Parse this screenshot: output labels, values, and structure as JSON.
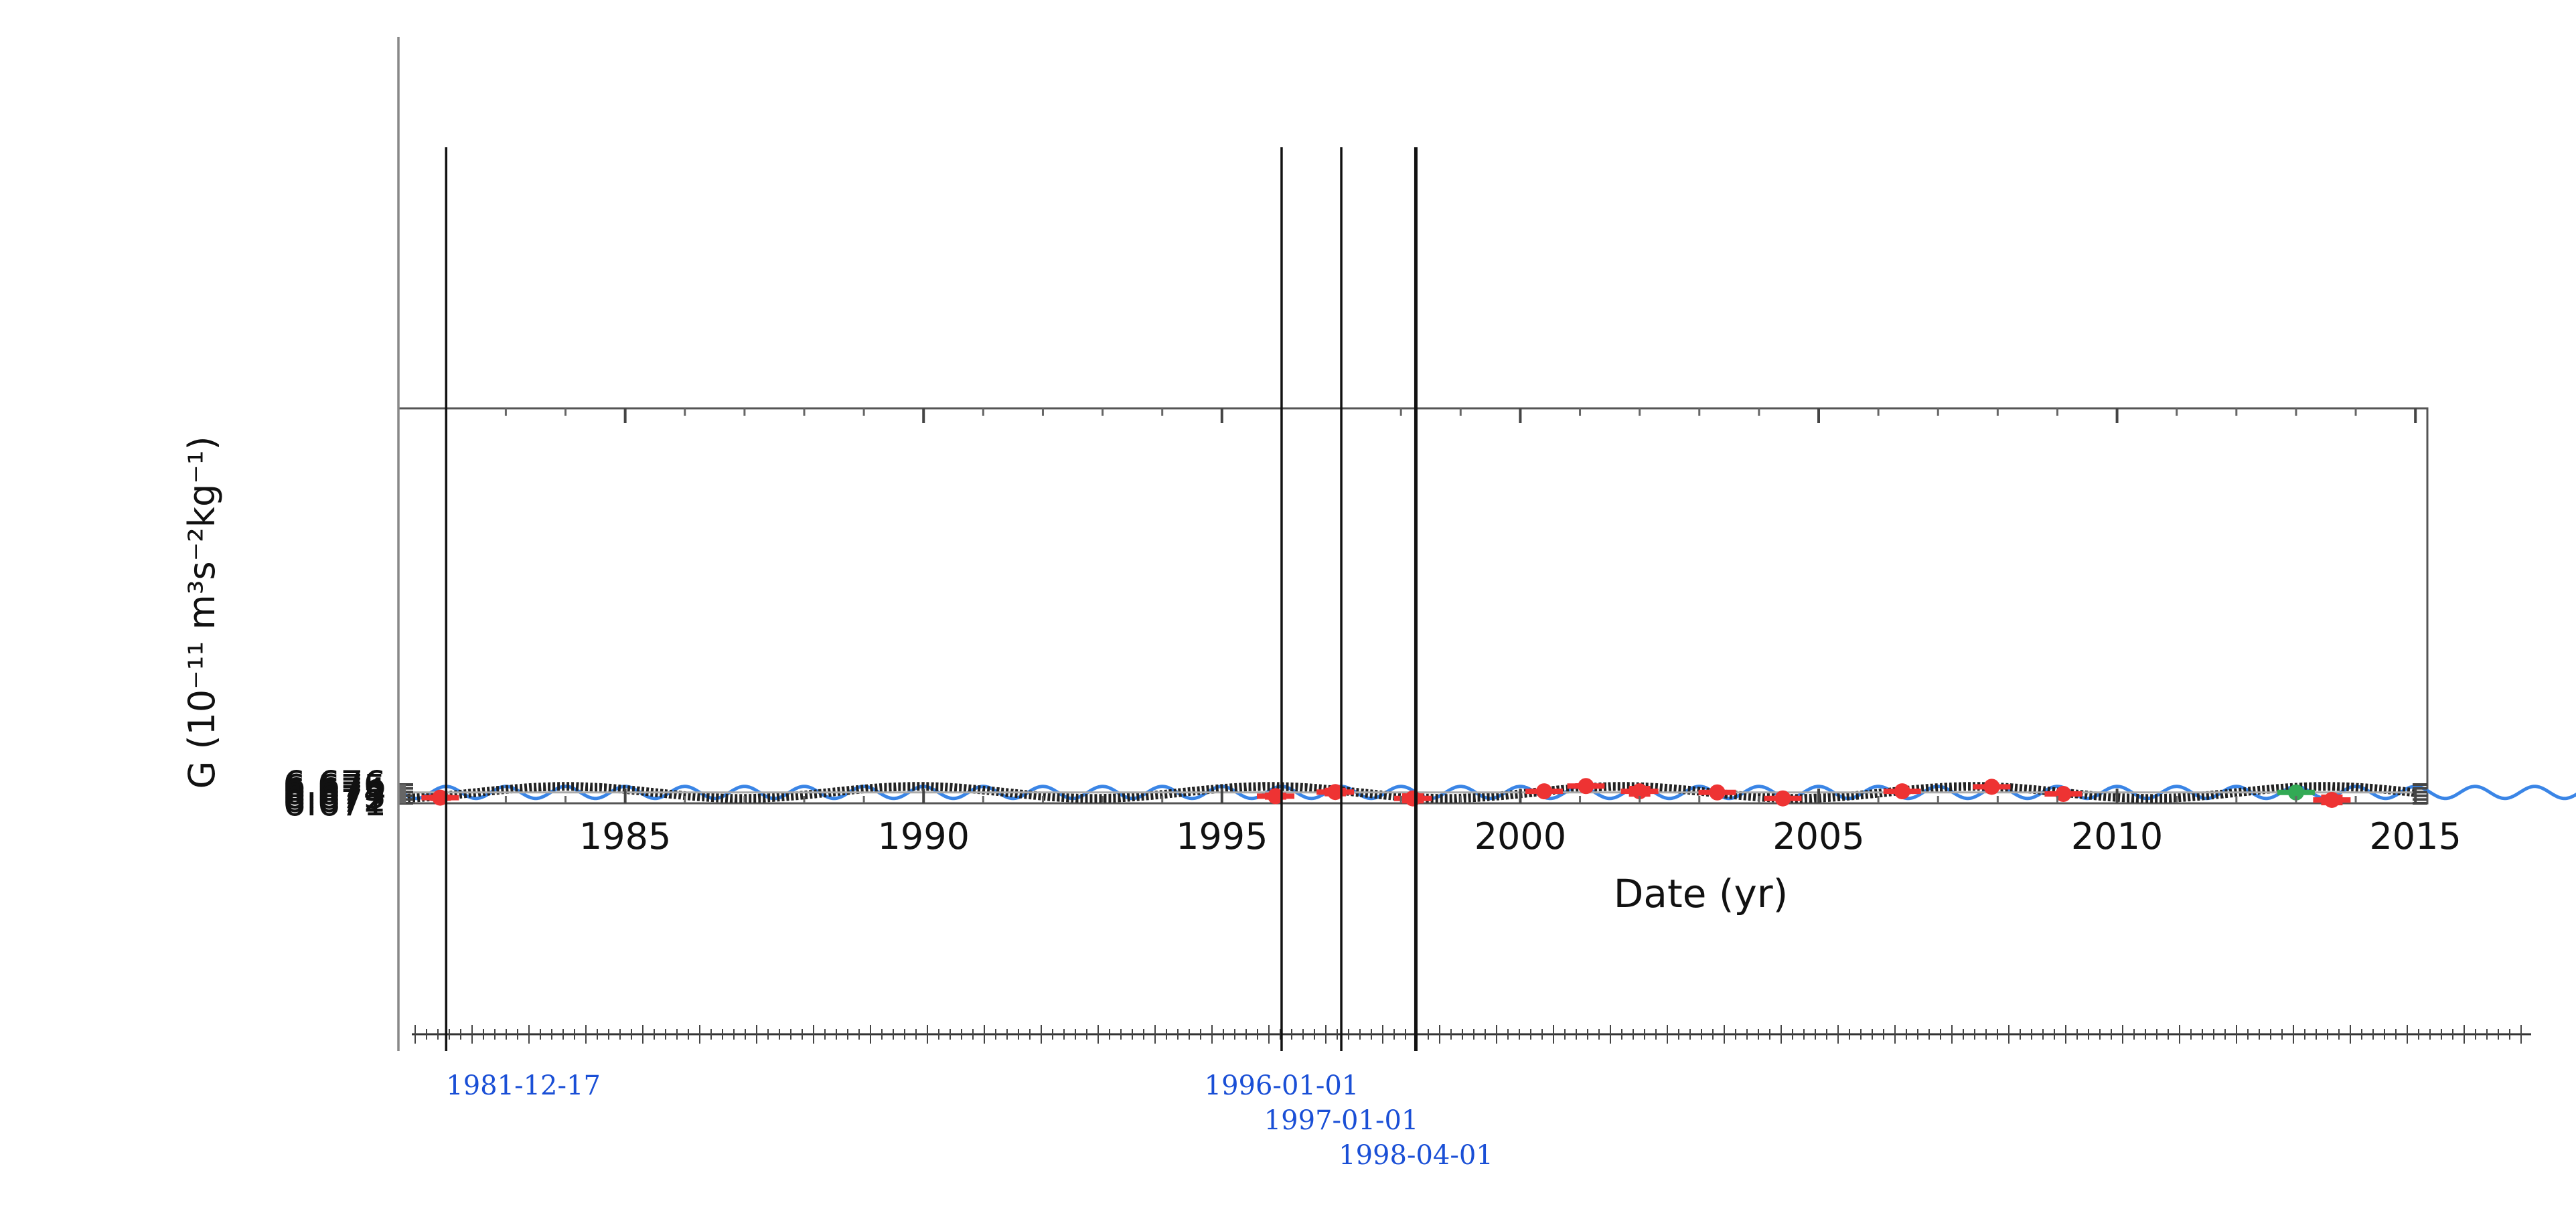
{
  "chart_data": {
    "type": "scatter",
    "xlabel": "Date (yr)",
    "ylabel": "G (10⁻¹¹ m³s⁻²kg⁻¹)",
    "xlim": [
      1981.2,
      2015.2
    ],
    "ylim": [
      6.671,
      6.7763
    ],
    "x_ticks": [
      1985,
      1990,
      1995,
      2000,
      2005,
      2010,
      2015
    ],
    "y_ticks": [
      6.671,
      6.672,
      6.673,
      6.674,
      6.675,
      6.676
    ],
    "grid": false,
    "mean_line": 6.6739,
    "series": [
      {
        "name": "",
        "kind": "sinusoid-fit",
        "color": "#222222",
        "x_range": [
          1981.2,
          2015.0
        ],
        "mean": 6.6739,
        "amplitude": 0.0016,
        "period_years": 5.9,
        "peak_year": 1984.0
      },
      {
        "name": "",
        "kind": "sinusoid",
        "color": "#3a85e6",
        "x_range": [
          1981.2,
          2018.0
        ],
        "mean": 6.6739,
        "amplitude": 0.0016,
        "period_years": 1.0,
        "peak_year": 1982.0
      },
      {
        "name": "",
        "kind": "measurements",
        "color": "#ee3333",
        "points": [
          {
            "x": 1981.9,
            "y": 6.6725,
            "err": 0.0004
          },
          {
            "x": 1995.9,
            "y": 6.6729,
            "err": 0.0005
          },
          {
            "x": 1996.9,
            "y": 6.674,
            "err": 0.0007
          },
          {
            "x": 1998.2,
            "y": 6.6723,
            "err": 0.0009
          },
          {
            "x": 2000.4,
            "y": 6.6742,
            "err": 0.0001
          },
          {
            "x": 2001.1,
            "y": 6.6756,
            "err": 0.0003
          },
          {
            "x": 2002.0,
            "y": 6.6742,
            "err": 0.001
          },
          {
            "x": 2003.3,
            "y": 6.6739,
            "err": 0.0002
          },
          {
            "x": 2004.4,
            "y": 6.6723,
            "err": 0.0001
          },
          {
            "x": 2006.4,
            "y": 6.6742,
            "err": 0.0001
          },
          {
            "x": 2007.9,
            "y": 6.6754,
            "err": 0.0002
          },
          {
            "x": 2009.1,
            "y": 6.6735,
            "err": 0.0002
          },
          {
            "x": 2013.6,
            "y": 6.6719,
            "err": 0.001
          }
        ]
      },
      {
        "name": "",
        "kind": "measurements",
        "color": "#33aa55",
        "points": [
          {
            "x": 2013.0,
            "y": 6.6739,
            "err": 0.0001
          }
        ]
      }
    ],
    "timeline": {
      "lower_ruler": true,
      "markers": [
        {
          "label": "",
          "x": 1981.2
        },
        {
          "label": "1981-12-17",
          "x": 1982.0
        },
        {
          "label": "1996-01-01",
          "x": 1996.0
        },
        {
          "label": "1997-01-01",
          "x": 1997.0
        },
        {
          "label": "1998-04-01",
          "x": 1998.25
        }
      ]
    }
  }
}
